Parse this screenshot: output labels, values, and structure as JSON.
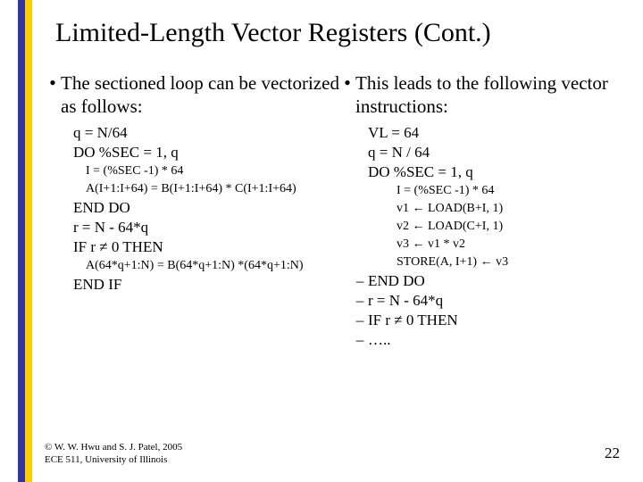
{
  "title": "Limited-Length Vector Registers (Cont.)",
  "left": {
    "bullet": "The sectioned loop can be vectorized as follows:",
    "lines": {
      "a1": "q = N/64",
      "a2": "DO %SEC = 1, q",
      "b1": "I = (%SEC -1) * 64",
      "b2": "A(I+1:I+64) = B(I+1:I+64) * C(I+1:I+64)",
      "a3": "END DO",
      "a4": "r = N - 64*q",
      "a5": "IF r ≠ 0 THEN",
      "b3": "A(64*q+1:N) = B(64*q+1:N) *(64*q+1:N)",
      "a6": "END IF"
    }
  },
  "right": {
    "bullet": "This leads to the following vector instructions:",
    "lines": {
      "a1": "VL = 64",
      "a2": "q = N / 64",
      "a3": "DO %SEC = 1, q",
      "b1": "I = (%SEC -1) * 64",
      "b2": "v1 ← LOAD(B+I, 1)",
      "b3": "v2 ← LOAD(C+I, 1)",
      "b4": "v3 ← v1 * v2",
      "b5": "STORE(A, I+1) ← v3",
      "d1": "END DO",
      "d2": "r = N - 64*q",
      "d3": "IF r ≠ 0 THEN",
      "d4": "….."
    }
  },
  "footer": {
    "l1": "© W. W. Hwu and S. J. Patel, 2005",
    "l2": "ECE 511, University of Illinois"
  },
  "pagenum": "22",
  "colors": {
    "stripe_blue": "#333399",
    "stripe_yellow": "#ffcc00",
    "text": "#000000",
    "background": "#ffffff"
  }
}
